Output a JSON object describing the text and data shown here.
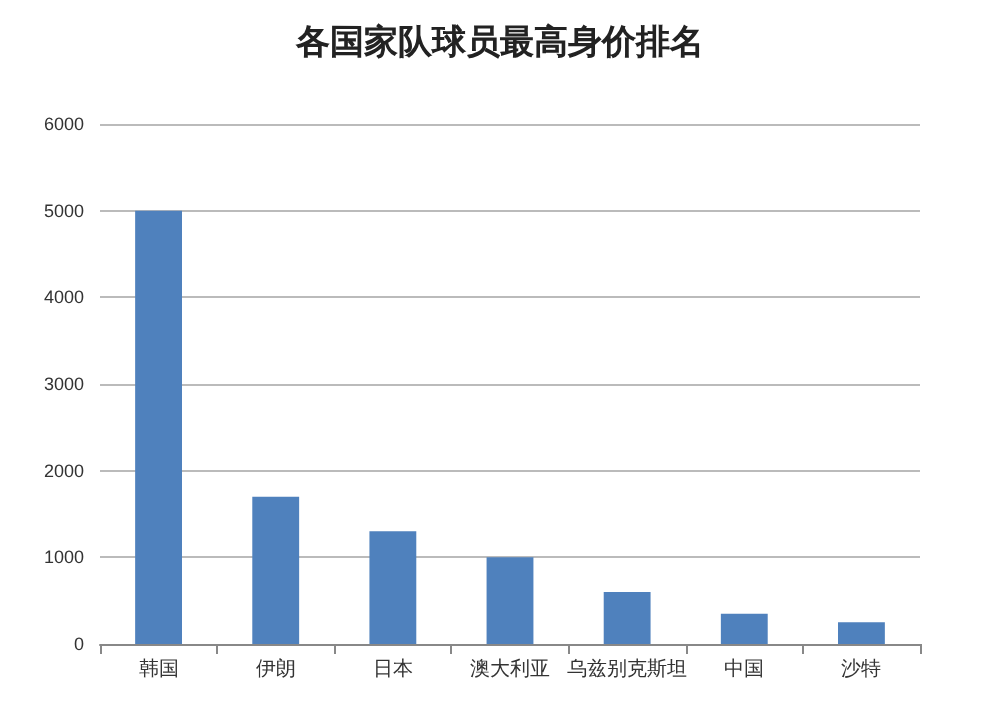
{
  "chart_data": {
    "type": "bar",
    "title": "各国家队球员最高身价排名",
    "categories": [
      "韩国",
      "伊朗",
      "日本",
      "澳大利亚",
      "乌兹别克斯坦",
      "中国",
      "沙特"
    ],
    "values": [
      5000,
      1700,
      1300,
      1000,
      600,
      350,
      250
    ],
    "color": "#4f81bd",
    "ylim": [
      0,
      6000
    ],
    "yticks": [
      0,
      1000,
      2000,
      3000,
      4000,
      5000,
      6000
    ],
    "grid": "y"
  }
}
